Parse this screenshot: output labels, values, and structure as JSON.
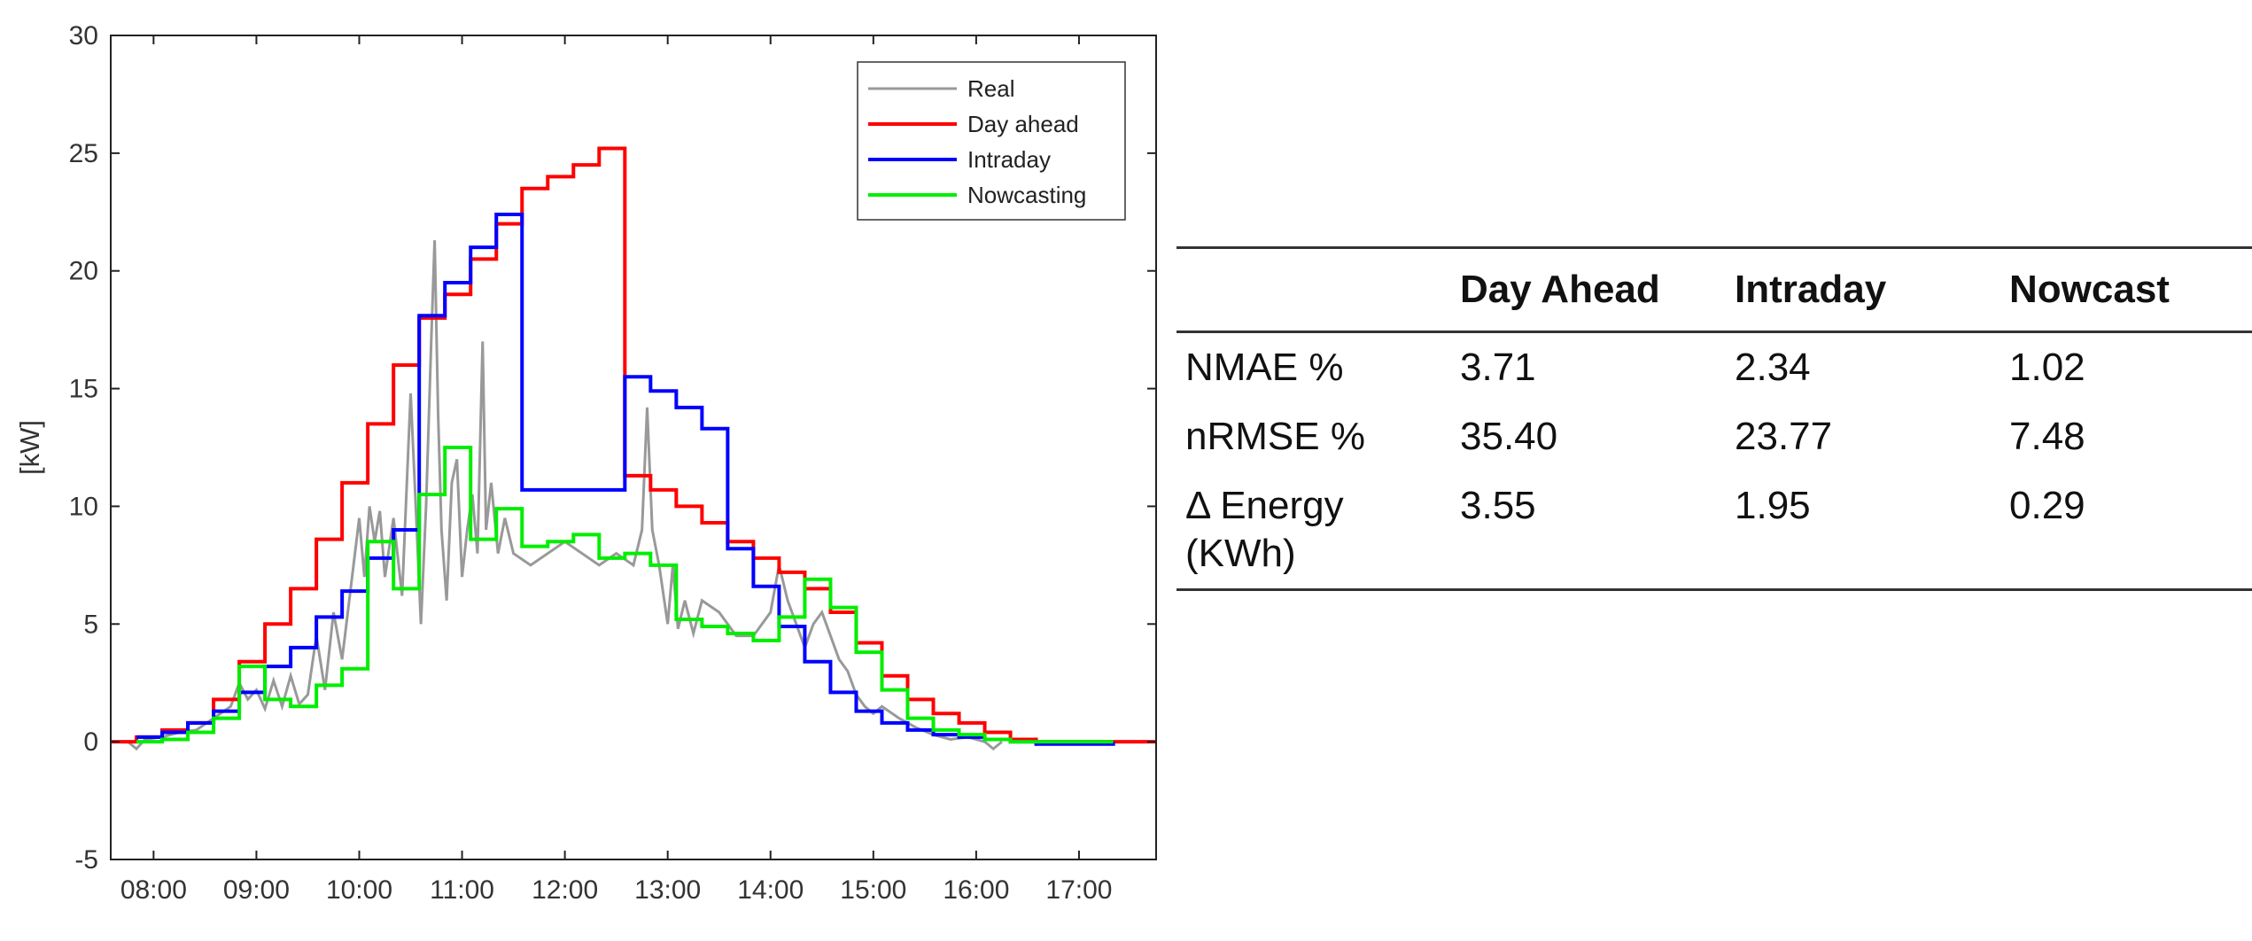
{
  "chart_data": [
    {
      "type": "line",
      "title": "",
      "xlabel": "",
      "ylabel": "[kW]",
      "xlim": [
        "07:35",
        "17:45"
      ],
      "ylim": [
        -5,
        30
      ],
      "x_ticks": [
        "08:00",
        "09:00",
        "10:00",
        "11:00",
        "12:00",
        "13:00",
        "14:00",
        "15:00",
        "16:00",
        "17:00"
      ],
      "y_ticks": [
        -5,
        0,
        5,
        10,
        15,
        20,
        25,
        30
      ],
      "grid": false,
      "legend_position": "top-right",
      "series": [
        {
          "name": "Real",
          "color": "#999999",
          "step": false,
          "points": [
            [
              "07:45",
              0
            ],
            [
              "07:50",
              -0.3
            ],
            [
              "07:55",
              0.1
            ],
            [
              "08:05",
              0.2
            ],
            [
              "08:15",
              0.4
            ],
            [
              "08:25",
              0.5
            ],
            [
              "08:35",
              1.0
            ],
            [
              "08:45",
              1.5
            ],
            [
              "08:50",
              2.5
            ],
            [
              "08:55",
              1.8
            ],
            [
              "09:00",
              2.2
            ],
            [
              "09:05",
              1.4
            ],
            [
              "09:10",
              2.6
            ],
            [
              "09:15",
              1.5
            ],
            [
              "09:20",
              2.8
            ],
            [
              "09:25",
              1.6
            ],
            [
              "09:30",
              2.0
            ],
            [
              "09:35",
              4.5
            ],
            [
              "09:40",
              2.2
            ],
            [
              "09:45",
              5.5
            ],
            [
              "09:50",
              3.5
            ],
            [
              "09:55",
              6.5
            ],
            [
              "10:00",
              9.5
            ],
            [
              "10:03",
              7.0
            ],
            [
              "10:06",
              10.0
            ],
            [
              "10:09",
              8.5
            ],
            [
              "10:12",
              9.8
            ],
            [
              "10:15",
              7.0
            ],
            [
              "10:20",
              9.5
            ],
            [
              "10:25",
              6.2
            ],
            [
              "10:30",
              14.8
            ],
            [
              "10:33",
              10.0
            ],
            [
              "10:36",
              5.0
            ],
            [
              "10:39",
              10.0
            ],
            [
              "10:42",
              17.0
            ],
            [
              "10:44",
              21.3
            ],
            [
              "10:46",
              14.0
            ],
            [
              "10:48",
              9.0
            ],
            [
              "10:51",
              6.0
            ],
            [
              "10:54",
              11.0
            ],
            [
              "10:57",
              12.0
            ],
            [
              "11:00",
              7.0
            ],
            [
              "11:03",
              9.0
            ],
            [
              "11:06",
              10.5
            ],
            [
              "11:09",
              8.0
            ],
            [
              "11:12",
              17.0
            ],
            [
              "11:14",
              9.0
            ],
            [
              "11:17",
              11.0
            ],
            [
              "11:21",
              8.0
            ],
            [
              "11:25",
              9.5
            ],
            [
              "11:30",
              8.0
            ],
            [
              "11:40",
              7.5
            ],
            [
              "11:50",
              8.0
            ],
            [
              "12:00",
              8.5
            ],
            [
              "12:10",
              8.0
            ],
            [
              "12:20",
              7.5
            ],
            [
              "12:30",
              8.0
            ],
            [
              "12:40",
              7.5
            ],
            [
              "12:45",
              9.0
            ],
            [
              "12:48",
              14.2
            ],
            [
              "12:51",
              9.0
            ],
            [
              "12:55",
              7.5
            ],
            [
              "12:58",
              6.0
            ],
            [
              "13:00",
              5.0
            ],
            [
              "13:03",
              7.5
            ],
            [
              "13:06",
              4.8
            ],
            [
              "13:10",
              6.0
            ],
            [
              "13:15",
              4.6
            ],
            [
              "13:20",
              6.0
            ],
            [
              "13:30",
              5.5
            ],
            [
              "13:40",
              4.5
            ],
            [
              "13:50",
              4.5
            ],
            [
              "14:00",
              5.5
            ],
            [
              "14:05",
              7.5
            ],
            [
              "14:10",
              6.0
            ],
            [
              "14:15",
              5.0
            ],
            [
              "14:20",
              4.0
            ],
            [
              "14:25",
              5.0
            ],
            [
              "14:30",
              5.5
            ],
            [
              "14:35",
              4.5
            ],
            [
              "14:40",
              3.5
            ],
            [
              "14:45",
              3.0
            ],
            [
              "14:50",
              2.0
            ],
            [
              "14:55",
              1.5
            ],
            [
              "15:00",
              1.2
            ],
            [
              "15:05",
              1.5
            ],
            [
              "15:15",
              1.0
            ],
            [
              "15:25",
              0.6
            ],
            [
              "15:35",
              0.3
            ],
            [
              "15:45",
              0.1
            ],
            [
              "15:55",
              0.2
            ],
            [
              "16:05",
              0.0
            ],
            [
              "16:10",
              -0.3
            ],
            [
              "16:15",
              0.0
            ]
          ]
        },
        {
          "name": "Day ahead",
          "color": "#ff0000",
          "step": true,
          "points": [
            [
              "07:35",
              0
            ],
            [
              "07:50",
              0.2
            ],
            [
              "08:05",
              0.5
            ],
            [
              "08:20",
              0.8
            ],
            [
              "08:35",
              1.8
            ],
            [
              "08:50",
              3.4
            ],
            [
              "09:05",
              5.0
            ],
            [
              "09:20",
              6.5
            ],
            [
              "09:35",
              8.6
            ],
            [
              "09:50",
              11.0
            ],
            [
              "10:05",
              13.5
            ],
            [
              "10:20",
              16.0
            ],
            [
              "10:35",
              18.0
            ],
            [
              "10:50",
              19.0
            ],
            [
              "11:05",
              20.5
            ],
            [
              "11:20",
              22.0
            ],
            [
              "11:35",
              23.5
            ],
            [
              "11:50",
              24.0
            ],
            [
              "12:05",
              24.5
            ],
            [
              "12:20",
              25.2
            ],
            [
              "12:35",
              11.3
            ],
            [
              "12:50",
              10.7
            ],
            [
              "13:05",
              10.0
            ],
            [
              "13:20",
              9.3
            ],
            [
              "13:35",
              8.5
            ],
            [
              "13:50",
              7.8
            ],
            [
              "14:05",
              7.2
            ],
            [
              "14:20",
              6.5
            ],
            [
              "14:35",
              5.5
            ],
            [
              "14:50",
              4.2
            ],
            [
              "15:05",
              2.8
            ],
            [
              "15:20",
              1.8
            ],
            [
              "15:35",
              1.2
            ],
            [
              "15:50",
              0.8
            ],
            [
              "16:05",
              0.4
            ],
            [
              "16:20",
              0.1
            ],
            [
              "16:35",
              0
            ],
            [
              "17:45",
              0
            ]
          ]
        },
        {
          "name": "Intraday",
          "color": "#0000ff",
          "step": true,
          "points": [
            [
              "07:50",
              0.2
            ],
            [
              "08:05",
              0.4
            ],
            [
              "08:20",
              0.8
            ],
            [
              "08:35",
              1.3
            ],
            [
              "08:50",
              2.1
            ],
            [
              "09:05",
              3.2
            ],
            [
              "09:20",
              4.0
            ],
            [
              "09:35",
              5.3
            ],
            [
              "09:50",
              6.4
            ],
            [
              "10:05",
              7.8
            ],
            [
              "10:20",
              9.0
            ],
            [
              "10:35",
              18.1
            ],
            [
              "10:50",
              19.5
            ],
            [
              "11:05",
              21.0
            ],
            [
              "11:20",
              22.4
            ],
            [
              "11:35",
              10.7
            ],
            [
              "12:35",
              15.5
            ],
            [
              "12:50",
              14.9
            ],
            [
              "13:05",
              14.2
            ],
            [
              "13:20",
              13.3
            ],
            [
              "13:35",
              8.2
            ],
            [
              "13:50",
              6.6
            ],
            [
              "14:05",
              4.9
            ],
            [
              "14:20",
              3.4
            ],
            [
              "14:35",
              2.1
            ],
            [
              "14:50",
              1.3
            ],
            [
              "15:05",
              0.8
            ],
            [
              "15:20",
              0.5
            ],
            [
              "15:35",
              0.3
            ],
            [
              "15:50",
              0.2
            ],
            [
              "16:05",
              0.1
            ],
            [
              "16:20",
              0
            ],
            [
              "16:35",
              -0.1
            ],
            [
              "17:20",
              0
            ]
          ]
        },
        {
          "name": "Nowcasting",
          "color": "#00ee00",
          "step": true,
          "points": [
            [
              "07:50",
              0
            ],
            [
              "08:05",
              0.1
            ],
            [
              "08:20",
              0.4
            ],
            [
              "08:35",
              1.0
            ],
            [
              "08:50",
              3.2
            ],
            [
              "09:05",
              1.8
            ],
            [
              "09:20",
              1.5
            ],
            [
              "09:35",
              2.4
            ],
            [
              "09:50",
              3.1
            ],
            [
              "10:05",
              8.5
            ],
            [
              "10:20",
              6.5
            ],
            [
              "10:35",
              10.5
            ],
            [
              "10:50",
              12.5
            ],
            [
              "11:05",
              8.6
            ],
            [
              "11:20",
              9.9
            ],
            [
              "11:35",
              8.3
            ],
            [
              "11:50",
              8.5
            ],
            [
              "12:05",
              8.8
            ],
            [
              "12:20",
              7.8
            ],
            [
              "12:35",
              8.0
            ],
            [
              "12:50",
              7.5
            ],
            [
              "13:05",
              5.2
            ],
            [
              "13:20",
              4.9
            ],
            [
              "13:35",
              4.6
            ],
            [
              "13:50",
              4.3
            ],
            [
              "14:05",
              5.3
            ],
            [
              "14:20",
              6.9
            ],
            [
              "14:35",
              5.7
            ],
            [
              "14:50",
              3.8
            ],
            [
              "15:05",
              2.2
            ],
            [
              "15:20",
              1.0
            ],
            [
              "15:35",
              0.5
            ],
            [
              "15:50",
              0.3
            ],
            [
              "16:05",
              0.1
            ],
            [
              "16:20",
              0
            ],
            [
              "17:20",
              0
            ]
          ]
        }
      ]
    },
    {
      "type": "table",
      "columns": [
        "",
        "Day Ahead",
        "Intraday",
        "Nowcast"
      ],
      "rows": [
        [
          "NMAE %",
          "3.71",
          "2.34",
          "1.02"
        ],
        [
          "nRMSE %",
          "35.40",
          "23.77",
          "7.48"
        ],
        [
          "Δ Energy (KWh)",
          "3.55",
          "1.95",
          "0.29"
        ]
      ]
    }
  ]
}
